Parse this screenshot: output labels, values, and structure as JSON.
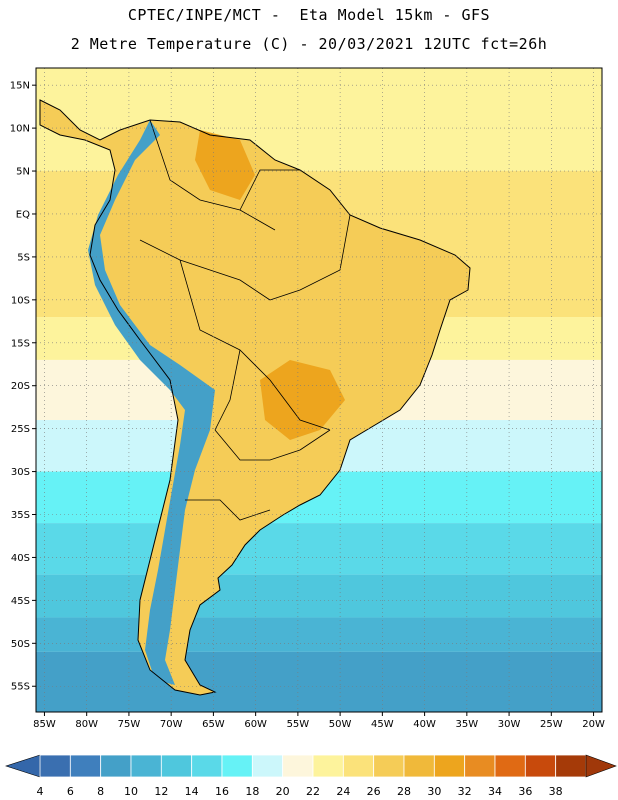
{
  "title_line1": "CPTEC/INPE/MCT -  Eta Model 15km - GFS",
  "title_line2": "2 Metre Temperature (C) - 20/03/2021 12UTC fct=26h",
  "lat_labels": [
    "15N",
    "10N",
    "5N",
    "EQ",
    "5S",
    "10S",
    "15S",
    "20S",
    "25S",
    "30S",
    "35S",
    "40S",
    "45S",
    "50S",
    "55S"
  ],
  "lon_labels": [
    "85W",
    "80W",
    "75W",
    "70W",
    "65W",
    "60W",
    "55W",
    "50W",
    "45W",
    "40W",
    "35W",
    "30W",
    "25W",
    "20W"
  ],
  "colorbar": {
    "labels": [
      "4",
      "6",
      "8",
      "10",
      "12",
      "14",
      "16",
      "18",
      "20",
      "22",
      "24",
      "26",
      "28",
      "30",
      "32",
      "34",
      "36",
      "38"
    ],
    "colors": [
      "#3a6fb0",
      "#3f7fbd",
      "#44a0c8",
      "#4ab4d4",
      "#4fc7dd",
      "#5ad9e8",
      "#66f2f6",
      "#ccf7fb",
      "#fdf6dc",
      "#fdf39c",
      "#fbe27a",
      "#f5cc57",
      "#f0b93a",
      "#eda51e",
      "#e88c22",
      "#e06a14",
      "#c84a0c",
      "#a53a08"
    ],
    "min_color": "#3467aa",
    "max_color": "#a0380a"
  },
  "map": {
    "lon_range": [
      -86,
      -19
    ],
    "lat_range": [
      17,
      -58
    ],
    "ocean_bands": [
      {
        "lat_from": 17,
        "lat_to": 5,
        "color": "#fdf39c"
      },
      {
        "lat_from": 5,
        "lat_to": -12,
        "color": "#fbe27a"
      },
      {
        "lat_from": -12,
        "lat_to": -17,
        "color": "#fdf39c"
      },
      {
        "lat_from": -17,
        "lat_to": -24,
        "color": "#fdf6dc"
      },
      {
        "lat_from": -24,
        "lat_to": -30,
        "color": "#ccf7fb"
      },
      {
        "lat_from": -30,
        "lat_to": -36,
        "color": "#66f2f6"
      },
      {
        "lat_from": -36,
        "lat_to": -42,
        "color": "#5ad9e8"
      },
      {
        "lat_from": -42,
        "lat_to": -47,
        "color": "#4fc7dd"
      },
      {
        "lat_from": -47,
        "lat_to": -51,
        "color": "#4ab4d4"
      },
      {
        "lat_from": -51,
        "lat_to": -58,
        "color": "#44a0c8"
      }
    ],
    "land_color": "#f5cc57",
    "hot_color": "#eda51e",
    "andes_color": "#44a0c8",
    "coast_color": "#000000"
  }
}
